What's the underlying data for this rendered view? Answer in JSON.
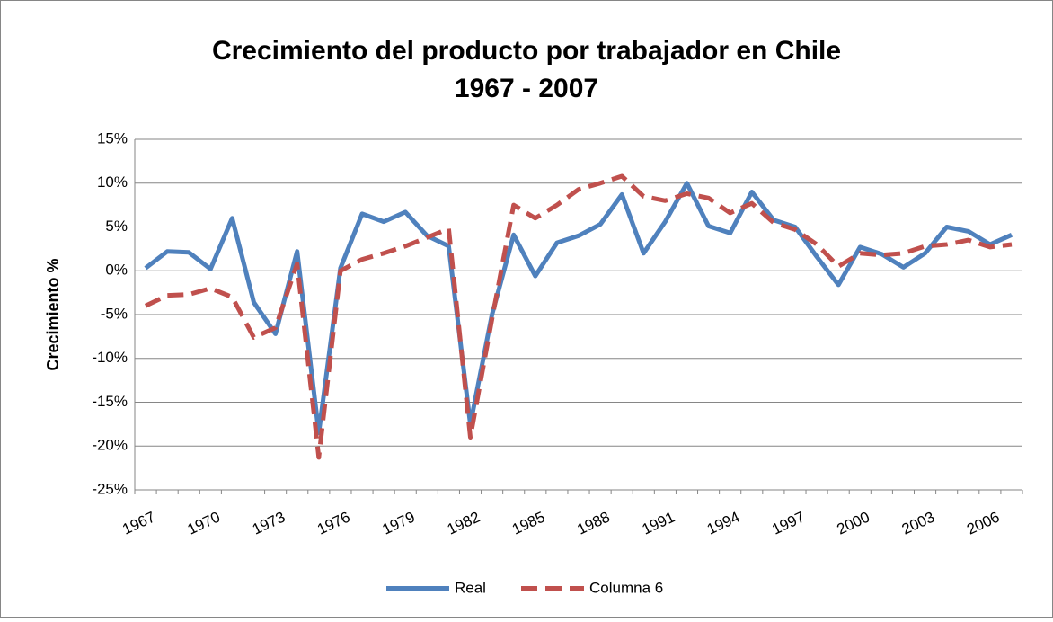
{
  "chart_data": {
    "type": "line",
    "title": "Crecimiento del producto por trabajador en Chile",
    "subtitle": "1967 - 2007",
    "y_label": "Crecimiento %",
    "categories": [
      "1967",
      null,
      null,
      "1970",
      null,
      null,
      "1973",
      null,
      null,
      "1976",
      null,
      null,
      "1979",
      null,
      null,
      "1982",
      null,
      null,
      "1985",
      null,
      null,
      "1988",
      null,
      null,
      "1991",
      null,
      null,
      "1994",
      null,
      null,
      "1997",
      null,
      null,
      "2000",
      null,
      null,
      "2003",
      null,
      null,
      "2006",
      null
    ],
    "series": [
      {
        "name": "Real",
        "color": "#4f81bd",
        "dash": false,
        "values": [
          0.3,
          2.2,
          2.1,
          0.2,
          6.0,
          -3.6,
          -7.2,
          2.2,
          -18.5,
          0.3,
          6.5,
          5.6,
          6.7,
          4.0,
          2.8,
          -17.5,
          -5.0,
          4.1,
          -0.6,
          3.2,
          4.0,
          5.3,
          8.7,
          2.0,
          5.6,
          10.0,
          5.1,
          4.3,
          9.0,
          5.8,
          5.0,
          1.6,
          -1.6,
          2.7,
          1.9,
          0.4,
          2.0,
          5.0,
          4.5,
          3.0,
          4.1
        ]
      },
      {
        "name": "Columna 6",
        "color": "#c0504d",
        "dash": true,
        "values": [
          -4.0,
          -2.8,
          -2.7,
          -2.0,
          -3.0,
          -7.6,
          -6.5,
          0.8,
          -21.3,
          0.0,
          1.3,
          2.0,
          2.8,
          3.8,
          4.8,
          -19.0,
          -5.5,
          7.5,
          6.0,
          7.5,
          9.3,
          10.0,
          10.8,
          8.5,
          8.0,
          8.8,
          8.3,
          6.6,
          7.7,
          5.5,
          4.7,
          3.0,
          0.5,
          2.0,
          1.8,
          2.0,
          2.8,
          3.0,
          3.5,
          2.7,
          3.0
        ]
      }
    ],
    "ylim": [
      -25,
      15
    ],
    "yticks": [
      {
        "value": -25,
        "label": "-25%"
      },
      {
        "value": -20,
        "label": "-20%"
      },
      {
        "value": -15,
        "label": "-15%"
      },
      {
        "value": -10,
        "label": "-10%"
      },
      {
        "value": -5,
        "label": "-5%"
      },
      {
        "value": 0,
        "label": "0%"
      },
      {
        "value": 5,
        "label": "5%"
      },
      {
        "value": 10,
        "label": "10%"
      },
      {
        "value": 15,
        "label": "15%"
      }
    ],
    "grid": true,
    "legend": "bottom"
  }
}
